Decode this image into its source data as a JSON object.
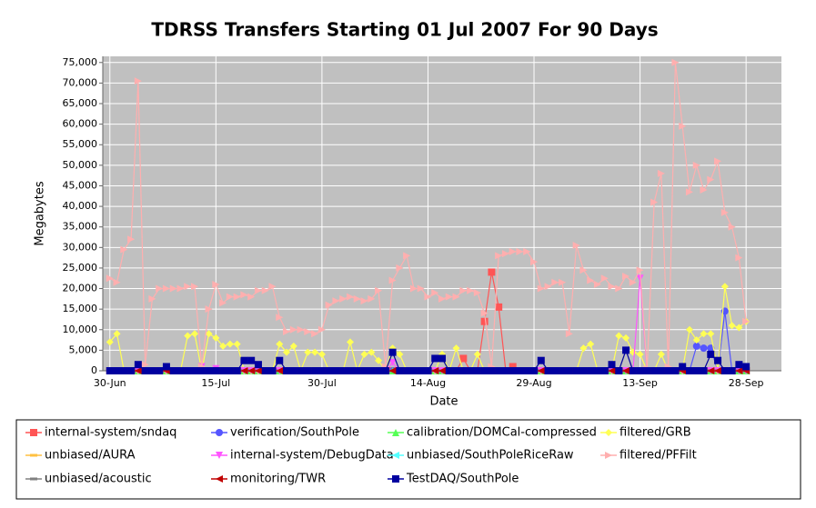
{
  "chart_data": {
    "type": "line",
    "title": "TDRSS Transfers Starting 01 Jul 2007 For 90 Days",
    "x_label": "Date",
    "y_label": "Megabytes",
    "grid": true,
    "legend": "bottom",
    "x": [
      "2007-06-30",
      "2007-07-01",
      "2007-07-02",
      "2007-07-03",
      "2007-07-04",
      "2007-07-05",
      "2007-07-06",
      "2007-07-07",
      "2007-07-08",
      "2007-07-09",
      "2007-07-10",
      "2007-07-11",
      "2007-07-12",
      "2007-07-13",
      "2007-07-14",
      "2007-07-15",
      "2007-07-16",
      "2007-07-17",
      "2007-07-18",
      "2007-07-19",
      "2007-07-20",
      "2007-07-21",
      "2007-07-22",
      "2007-07-23",
      "2007-07-24",
      "2007-07-25",
      "2007-07-26",
      "2007-07-27",
      "2007-07-28",
      "2007-07-29",
      "2007-07-30",
      "2007-07-31",
      "2007-08-01",
      "2007-08-02",
      "2007-08-03",
      "2007-08-04",
      "2007-08-05",
      "2007-08-06",
      "2007-08-07",
      "2007-08-08",
      "2007-08-09",
      "2007-08-10",
      "2007-08-11",
      "2007-08-12",
      "2007-08-13",
      "2007-08-14",
      "2007-08-15",
      "2007-08-16",
      "2007-08-17",
      "2007-08-18",
      "2007-08-19",
      "2007-08-20",
      "2007-08-21",
      "2007-08-22",
      "2007-08-23",
      "2007-08-24",
      "2007-08-25",
      "2007-08-26",
      "2007-08-27",
      "2007-08-28",
      "2007-08-29",
      "2007-08-30",
      "2007-08-31",
      "2007-09-01",
      "2007-09-02",
      "2007-09-03",
      "2007-09-04",
      "2007-09-05",
      "2007-09-06",
      "2007-09-07",
      "2007-09-08",
      "2007-09-09",
      "2007-09-10",
      "2007-09-11",
      "2007-09-12",
      "2007-09-13",
      "2007-09-14",
      "2007-09-15",
      "2007-09-16",
      "2007-09-17",
      "2007-09-18",
      "2007-09-19",
      "2007-09-20",
      "2007-09-21",
      "2007-09-22",
      "2007-09-23",
      "2007-09-24",
      "2007-09-25",
      "2007-09-26",
      "2007-09-27",
      "2007-09-28"
    ],
    "xlim": [
      "2007-06-29",
      "2007-10-03"
    ],
    "xticks": [
      {
        "value": "2007-06-30",
        "label": "30-Jun"
      },
      {
        "value": "2007-07-15",
        "label": "15-Jul"
      },
      {
        "value": "2007-07-30",
        "label": "30-Jul"
      },
      {
        "value": "2007-08-14",
        "label": "14-Aug"
      },
      {
        "value": "2007-08-29",
        "label": "29-Aug"
      },
      {
        "value": "2007-09-13",
        "label": "13-Sep"
      },
      {
        "value": "2007-09-28",
        "label": "28-Sep"
      }
    ],
    "ylim": [
      0,
      76500
    ],
    "yticks": [
      0,
      {
        "value": 5000,
        "label": "5,000"
      },
      {
        "value": 10000,
        "label": "10,000"
      },
      {
        "value": 15000,
        "label": "15,000"
      },
      {
        "value": 20000,
        "label": "20,000"
      },
      {
        "value": 25000,
        "label": "25,000"
      },
      {
        "value": 30000,
        "label": "30,000"
      },
      {
        "value": 35000,
        "label": "35,000"
      },
      {
        "value": 40000,
        "label": "40,000"
      },
      {
        "value": 45000,
        "label": "45,000"
      },
      {
        "value": 50000,
        "label": "50,000"
      },
      {
        "value": 55000,
        "label": "55,000"
      },
      {
        "value": 60000,
        "label": "60,000"
      },
      {
        "value": 65000,
        "label": "65,000"
      },
      {
        "value": 70000,
        "label": "70,000"
      },
      {
        "value": 75000,
        "label": "75,000"
      }
    ],
    "series": [
      {
        "name": "internal-system/sndaq",
        "color": "#ff5555",
        "marker": "square",
        "values": [
          0,
          0,
          0,
          0,
          0,
          0,
          0,
          0,
          0,
          0,
          0,
          0,
          0,
          0,
          0,
          0,
          0,
          0,
          0,
          0,
          0,
          0,
          0,
          0,
          0,
          0,
          0,
          0,
          0,
          0,
          0,
          0,
          0,
          0,
          0,
          0,
          0,
          0,
          0,
          0,
          0,
          0,
          0,
          0,
          0,
          0,
          0,
          0,
          0,
          0,
          3000,
          0,
          0,
          12000,
          24000,
          15500,
          0,
          1000,
          0,
          0,
          0,
          0,
          0,
          0,
          0,
          0,
          0,
          0,
          0,
          0,
          0,
          0,
          0,
          0,
          0,
          0,
          0,
          0,
          0,
          0,
          0,
          0,
          0,
          0,
          0,
          0,
          0,
          0,
          0,
          0,
          0
        ]
      },
      {
        "name": "verification/SouthPole",
        "color": "#5555ff",
        "marker": "circle",
        "values": [
          0,
          0,
          0,
          0,
          0,
          0,
          0,
          0,
          0,
          0,
          0,
          0,
          0,
          0,
          0,
          0,
          0,
          0,
          0,
          0,
          0,
          0,
          0,
          0,
          0,
          0,
          0,
          0,
          0,
          0,
          0,
          0,
          0,
          0,
          0,
          0,
          0,
          0,
          0,
          0,
          0,
          0,
          0,
          0,
          0,
          0,
          0,
          0,
          0,
          0,
          0,
          0,
          0,
          0,
          0,
          0,
          0,
          0,
          0,
          0,
          0,
          0,
          0,
          0,
          0,
          0,
          0,
          0,
          0,
          0,
          0,
          0,
          0,
          0,
          0,
          0,
          0,
          0,
          0,
          0,
          0,
          0,
          0,
          6000,
          5500,
          5500,
          0,
          14500,
          0,
          0,
          0
        ]
      },
      {
        "name": "calibration/DOMCal-compressed",
        "color": "#55ff55",
        "marker": "triangle-up",
        "values": [
          0,
          0,
          0,
          0,
          0,
          0,
          0,
          0,
          0,
          0,
          0,
          0,
          0,
          0,
          0,
          0,
          0,
          0,
          0,
          0,
          0,
          0,
          0,
          0,
          0,
          0,
          0,
          0,
          0,
          0,
          0,
          0,
          0,
          0,
          0,
          0,
          0,
          0,
          0,
          0,
          0,
          0,
          0,
          0,
          0,
          0,
          0,
          0,
          0,
          0,
          0,
          0,
          0,
          0,
          0,
          0,
          0,
          0,
          0,
          0,
          0,
          0,
          0,
          0,
          0,
          0,
          0,
          0,
          0,
          0,
          0,
          0,
          0,
          0,
          0,
          0,
          0,
          0,
          0,
          0,
          0,
          0,
          0,
          0,
          0,
          0,
          0,
          0,
          0,
          0,
          0
        ]
      },
      {
        "name": "filtered/GRB",
        "color": "#ffff55",
        "marker": "diamond",
        "values": [
          7000,
          9000,
          0,
          0,
          0,
          0,
          0,
          0,
          0,
          0,
          0,
          8500,
          9000,
          0,
          9000,
          8000,
          6000,
          6500,
          6500,
          0,
          0,
          0,
          0,
          0,
          6500,
          4500,
          6000,
          0,
          4500,
          4500,
          4000,
          0,
          0,
          0,
          7000,
          0,
          4000,
          4500,
          2500,
          0,
          5500,
          4000,
          0,
          0,
          0,
          0,
          0,
          4000,
          0,
          5500,
          0,
          0,
          4000,
          0,
          0,
          0,
          0,
          0,
          0,
          0,
          0,
          0,
          0,
          0,
          0,
          0,
          0,
          5500,
          6500,
          0,
          0,
          0,
          8500,
          8000,
          4500,
          4000,
          0,
          0,
          4000,
          0,
          0,
          0,
          10000,
          7500,
          9000,
          9000,
          0,
          20500,
          11000,
          10500,
          12000
        ]
      },
      {
        "name": "unbiased/AURA",
        "color": "#ffc040",
        "marker": "hbar",
        "values": [
          0,
          0,
          0,
          0,
          0,
          0,
          0,
          0,
          0,
          0,
          0,
          0,
          0,
          0,
          0,
          0,
          0,
          0,
          0,
          0,
          0,
          0,
          0,
          0,
          0,
          0,
          0,
          0,
          0,
          0,
          0,
          0,
          0,
          0,
          0,
          0,
          0,
          0,
          0,
          0,
          0,
          0,
          0,
          0,
          0,
          0,
          0,
          0,
          0,
          0,
          0,
          0,
          0,
          0,
          0,
          0,
          0,
          0,
          0,
          0,
          0,
          0,
          0,
          0,
          0,
          0,
          0,
          0,
          0,
          0,
          0,
          0,
          0,
          0,
          0,
          0,
          0,
          0,
          0,
          0,
          0,
          0,
          0,
          0,
          0,
          0,
          0,
          0,
          0,
          0,
          0
        ]
      },
      {
        "name": "internal-system/DebugData",
        "color": "#ff55ff",
        "marker": "triangle-down",
        "values": [
          0,
          0,
          0,
          0,
          0,
          0,
          0,
          0,
          0,
          0,
          0,
          0,
          0,
          1000,
          0,
          500,
          0,
          0,
          0,
          0,
          0,
          0,
          0,
          0,
          0,
          0,
          0,
          0,
          0,
          0,
          0,
          0,
          0,
          0,
          0,
          0,
          0,
          0,
          0,
          0,
          2000,
          0,
          0,
          0,
          0,
          0,
          0,
          0,
          0,
          0,
          0,
          0,
          0,
          0,
          0,
          0,
          0,
          0,
          0,
          0,
          0,
          0,
          0,
          0,
          0,
          0,
          0,
          0,
          0,
          0,
          0,
          0,
          0,
          0,
          0,
          22500,
          0,
          0,
          0,
          0,
          0,
          0,
          0,
          0,
          0,
          0,
          0,
          0,
          0,
          0,
          0
        ]
      },
      {
        "name": "unbiased/SouthPoleRiceRaw",
        "color": "#55ffff",
        "marker": "triangle-left",
        "values": [
          0,
          0,
          0,
          0,
          0,
          0,
          0,
          0,
          0,
          0,
          0,
          0,
          0,
          0,
          0,
          0,
          0,
          0,
          0,
          0,
          0,
          0,
          0,
          0,
          0,
          0,
          0,
          0,
          0,
          0,
          0,
          0,
          0,
          0,
          0,
          0,
          0,
          0,
          0,
          0,
          0,
          0,
          0,
          0,
          0,
          0,
          0,
          0,
          0,
          0,
          0,
          0,
          0,
          0,
          0,
          0,
          0,
          0,
          0,
          0,
          0,
          0,
          0,
          0,
          0,
          0,
          0,
          0,
          0,
          0,
          0,
          0,
          0,
          0,
          0,
          0,
          0,
          0,
          0,
          0,
          0,
          0,
          0,
          0,
          0,
          0,
          0,
          0,
          0,
          0,
          0
        ]
      },
      {
        "name": "filtered/PFFilt",
        "color": "#ffafaf",
        "marker": "triangle-right",
        "values": [
          22500,
          21500,
          29500,
          32000,
          70500,
          1500,
          17500,
          20000,
          20000,
          20000,
          20000,
          20500,
          20500,
          1000,
          15000,
          21000,
          16500,
          18000,
          18000,
          18500,
          18000,
          19500,
          19500,
          20500,
          13000,
          9500,
          10000,
          10000,
          9500,
          9000,
          10000,
          16000,
          17000,
          17500,
          18000,
          17500,
          17000,
          17500,
          19500,
          1000,
          22000,
          25000,
          28000,
          20000,
          20000,
          18000,
          19000,
          17500,
          18000,
          18000,
          19500,
          19500,
          19000,
          14000,
          1000,
          28000,
          28500,
          29000,
          29000,
          29000,
          26500,
          20000,
          20500,
          21500,
          21500,
          9000,
          30500,
          24500,
          22000,
          21000,
          22500,
          20500,
          20000,
          23000,
          21500,
          24500,
          500,
          41000,
          48000,
          1000,
          75000,
          59500,
          43500,
          50000,
          44000,
          46500,
          51000,
          38500,
          35000,
          27500,
          12000
        ]
      },
      {
        "name": "unbiased/acoustic",
        "color": "#808080",
        "marker": "hbar",
        "values": [
          0,
          0,
          0,
          0,
          0,
          0,
          0,
          0,
          0,
          0,
          0,
          0,
          0,
          0,
          0,
          0,
          0,
          0,
          0,
          0,
          0,
          0,
          0,
          0,
          0,
          0,
          0,
          0,
          0,
          0,
          0,
          0,
          0,
          0,
          0,
          0,
          0,
          0,
          0,
          0,
          0,
          0,
          0,
          0,
          0,
          0,
          0,
          0,
          0,
          0,
          0,
          0,
          0,
          0,
          0,
          0,
          0,
          0,
          0,
          0,
          0,
          0,
          0,
          0,
          0,
          0,
          0,
          0,
          0,
          0,
          0,
          0,
          0,
          0,
          0,
          0,
          0,
          0,
          0,
          0,
          0,
          0,
          0,
          0,
          0,
          0,
          0,
          0,
          0,
          0,
          0
        ]
      },
      {
        "name": "monitoring/TWR",
        "color": "#c00000",
        "marker": "triangle-left",
        "values": [
          0,
          0,
          0,
          0,
          0,
          0,
          0,
          0,
          0,
          0,
          0,
          0,
          0,
          0,
          0,
          0,
          0,
          0,
          0,
          0,
          0,
          0,
          0,
          0,
          0,
          0,
          0,
          0,
          0,
          0,
          0,
          0,
          0,
          0,
          0,
          0,
          0,
          0,
          0,
          0,
          0,
          0,
          0,
          0,
          0,
          0,
          0,
          0,
          0,
          0,
          0,
          0,
          0,
          0,
          0,
          0,
          0,
          0,
          0,
          0,
          0,
          0,
          0,
          0,
          0,
          0,
          0,
          0,
          0,
          0,
          0,
          0,
          0,
          0,
          0,
          0,
          0,
          0,
          0,
          0,
          0,
          0,
          0,
          0,
          0,
          0,
          0,
          0,
          0,
          0,
          0
        ]
      },
      {
        "name": "TestDAQ/SouthPole",
        "color": "#0000a0",
        "marker": "square",
        "values": [
          0,
          0,
          0,
          0,
          1500,
          0,
          0,
          0,
          1000,
          0,
          0,
          0,
          0,
          0,
          0,
          0,
          0,
          0,
          0,
          2500,
          2500,
          1500,
          0,
          0,
          2500,
          0,
          0,
          0,
          0,
          0,
          0,
          0,
          0,
          0,
          0,
          0,
          0,
          0,
          0,
          0,
          4500,
          0,
          0,
          0,
          0,
          0,
          3000,
          3000,
          0,
          0,
          0,
          0,
          0,
          0,
          0,
          0,
          0,
          0,
          0,
          0,
          0,
          2500,
          0,
          0,
          0,
          0,
          0,
          0,
          0,
          0,
          0,
          1500,
          0,
          5000,
          0,
          0,
          0,
          0,
          0,
          0,
          0,
          1000,
          0,
          0,
          0,
          4000,
          2500,
          0,
          0,
          1500,
          1000
        ]
      }
    ]
  }
}
